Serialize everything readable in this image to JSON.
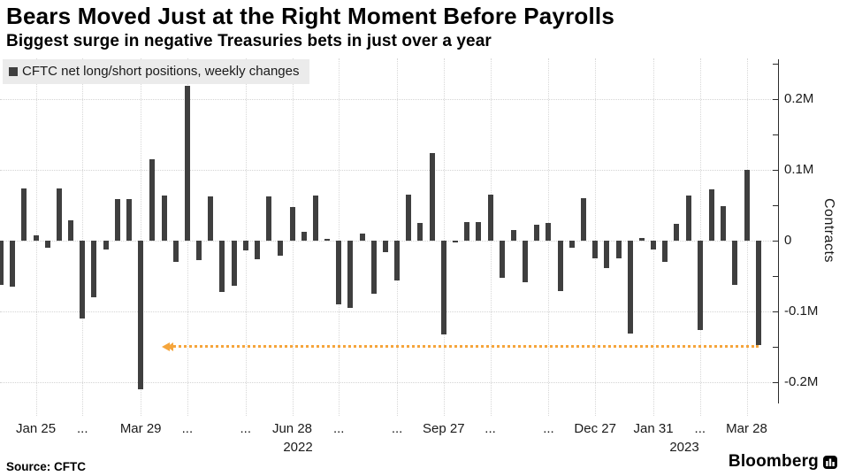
{
  "header": {
    "title": "Bears Moved Just at the Right Moment Before Payrolls",
    "subtitle": "Biggest surge in negative Treasuries bets in just over a year"
  },
  "legend": {
    "label": "CFTC net long/short positions, weekly changes",
    "swatch_color": "#3f3f3f"
  },
  "colors": {
    "bar": "#3f3f3f",
    "annotation_orange": "#f5a53c",
    "gridline": "#d6d6d6",
    "axis": "#2b2b2b"
  },
  "chart_data": {
    "type": "bar",
    "title": "Bears Moved Just at the Right Moment Before Payrolls",
    "subtitle": "Biggest surge in negative Treasuries bets in just over a year",
    "series_name": "CFTC net long/short positions, weekly changes",
    "unit": "millions of contracts",
    "ylabel": "Contracts",
    "ylim": [
      -0.23,
      0.255
    ],
    "grid": "dotted, at labeled ticks",
    "values": [
      -0.063,
      -0.065,
      0.073,
      0.007,
      -0.01,
      0.074,
      0.028,
      -0.11,
      -0.08,
      -0.013,
      0.058,
      0.058,
      -0.21,
      0.115,
      0.063,
      -0.03,
      0.218,
      -0.028,
      0.062,
      -0.073,
      -0.064,
      -0.014,
      -0.027,
      0.062,
      -0.022,
      0.047,
      0.012,
      0.064,
      0.002,
      -0.091,
      -0.095,
      0.01,
      -0.075,
      -0.017,
      -0.057,
      0.065,
      0.025,
      0.124,
      -0.133,
      -0.003,
      0.026,
      0.026,
      0.065,
      -0.053,
      0.015,
      -0.059,
      0.022,
      0.025,
      -0.072,
      -0.01,
      0.06,
      -0.025,
      -0.039,
      -0.026,
      -0.132,
      0.003,
      -0.013,
      -0.03,
      0.024,
      0.063,
      -0.127,
      0.072,
      0.049,
      -0.063,
      0.1,
      -0.148
    ],
    "x_tick_labels": [
      {
        "i": 3,
        "label": "Jan 25"
      },
      {
        "i": 7,
        "label": "..."
      },
      {
        "i": 12,
        "label": "Mar 29"
      },
      {
        "i": 16,
        "label": "..."
      },
      {
        "i": 21,
        "label": "..."
      },
      {
        "i": 25,
        "label": "Jun 28"
      },
      {
        "i": 29,
        "label": "..."
      },
      {
        "i": 34,
        "label": "..."
      },
      {
        "i": 38,
        "label": "Sep 27"
      },
      {
        "i": 42,
        "label": "..."
      },
      {
        "i": 47,
        "label": "..."
      },
      {
        "i": 51,
        "label": "Dec 27"
      },
      {
        "i": 56,
        "label": "Jan 31"
      },
      {
        "i": 60,
        "label": "..."
      },
      {
        "i": 64,
        "label": "Mar 28"
      }
    ],
    "year_labels": [
      {
        "x": 337,
        "label": "2022"
      },
      {
        "x": 774,
        "label": "2023"
      }
    ],
    "y_ticks_labeled": [
      {
        "v": 0.2,
        "label": "0.2M"
      },
      {
        "v": 0.1,
        "label": "0.1M"
      },
      {
        "v": 0.0,
        "label": "0"
      },
      {
        "v": -0.1,
        "label": "-0.1M"
      },
      {
        "v": -0.2,
        "label": "-0.2M"
      }
    ],
    "y_minor_tick_step": 0.05,
    "y_minor_tick_range": [
      -0.2,
      0.25
    ],
    "annotation": {
      "type": "horizontal-dotted-arrow",
      "value": -0.15,
      "from_week": 14,
      "to_week": 65,
      "arrow_direction": "left",
      "color": "#f5a53c"
    }
  },
  "footer": {
    "source": "Source: CFTC",
    "brand": "Bloomberg"
  }
}
